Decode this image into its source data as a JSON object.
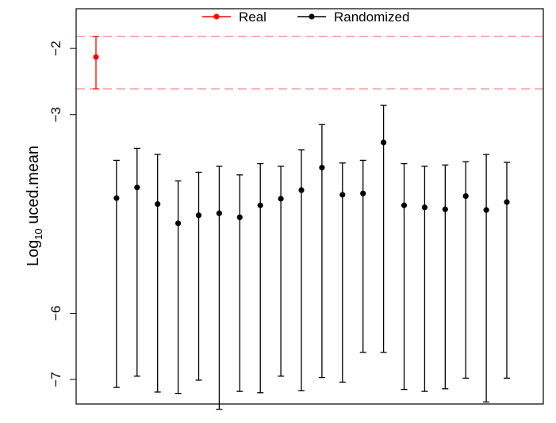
{
  "chart_data": {
    "type": "scatter",
    "ylabel_base": "Log",
    "ylabel_sub": "10",
    "ylabel_rest": " uced.mean",
    "yticks": [
      -2,
      -3,
      -6,
      -7
    ],
    "ytick_labels": [
      "−2",
      "−3",
      "−6",
      "−7"
    ],
    "ylim": [
      -7.37,
      -1.4
    ],
    "reference_lines": [
      -1.82,
      -2.61
    ],
    "colors": {
      "real": "#ff0000",
      "randomized": "#000000",
      "reference_line": "#f08080"
    },
    "series": [
      {
        "name": "Real",
        "points": [
          {
            "x": 0,
            "y": -2.13,
            "lower": -2.61,
            "upper": -1.82
          }
        ]
      },
      {
        "name": "Randomized",
        "points": [
          {
            "x": 1,
            "y": -4.26,
            "lower": -7.12,
            "upper": -3.69
          },
          {
            "x": 2,
            "y": -4.1,
            "lower": -6.95,
            "upper": -3.51
          },
          {
            "x": 3,
            "y": -4.35,
            "lower": -7.19,
            "upper": -3.6
          },
          {
            "x": 4,
            "y": -4.64,
            "lower": -7.21,
            "upper": -4.0
          },
          {
            "x": 5,
            "y": -4.52,
            "lower": -7.01,
            "upper": -3.87
          },
          {
            "x": 6,
            "y": -4.49,
            "lower": -7.45,
            "upper": -3.78
          },
          {
            "x": 7,
            "y": -4.55,
            "lower": -7.18,
            "upper": -3.91
          },
          {
            "x": 8,
            "y": -4.37,
            "lower": -7.2,
            "upper": -3.74
          },
          {
            "x": 9,
            "y": -4.27,
            "lower": -6.95,
            "upper": -3.78
          },
          {
            "x": 10,
            "y": -4.14,
            "lower": -7.17,
            "upper": -3.53
          },
          {
            "x": 11,
            "y": -3.8,
            "lower": -6.97,
            "upper": -3.15
          },
          {
            "x": 12,
            "y": -4.21,
            "lower": -7.04,
            "upper": -3.73
          },
          {
            "x": 13,
            "y": -4.19,
            "lower": -6.59,
            "upper": -3.69
          },
          {
            "x": 14,
            "y": -3.42,
            "lower": -6.59,
            "upper": -2.86
          },
          {
            "x": 15,
            "y": -4.37,
            "lower": -7.15,
            "upper": -3.74
          },
          {
            "x": 16,
            "y": -4.4,
            "lower": -7.18,
            "upper": -3.78
          },
          {
            "x": 17,
            "y": -4.43,
            "lower": -7.14,
            "upper": -3.76
          },
          {
            "x": 18,
            "y": -4.23,
            "lower": -6.98,
            "upper": -3.71
          },
          {
            "x": 19,
            "y": -4.44,
            "lower": -7.34,
            "upper": -3.6
          },
          {
            "x": 20,
            "y": -4.32,
            "lower": -6.98,
            "upper": -3.72
          }
        ]
      }
    ]
  }
}
